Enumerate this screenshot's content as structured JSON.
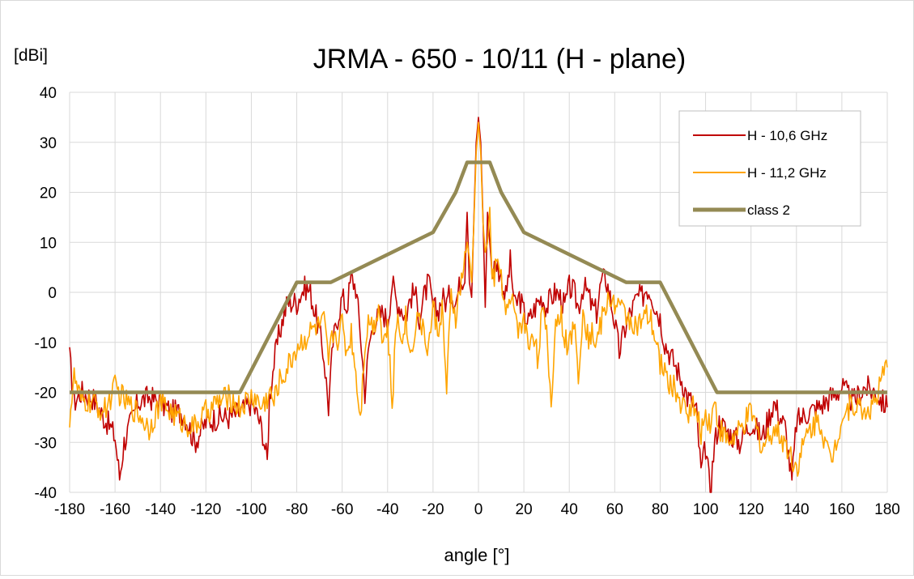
{
  "chart_data": {
    "type": "line",
    "title": "JRMA - 650 - 10/11 (H - plane)",
    "ylabel": "[dBi]",
    "xlabel": "angle [°]",
    "xlim": [
      -180,
      180
    ],
    "ylim": [
      -40,
      40
    ],
    "x_ticks": [
      -180,
      -160,
      -140,
      -120,
      -100,
      -80,
      -60,
      -40,
      -20,
      0,
      20,
      40,
      60,
      80,
      100,
      120,
      140,
      160,
      180
    ],
    "y_ticks": [
      -40,
      -30,
      -20,
      -10,
      0,
      10,
      20,
      30,
      40
    ],
    "grid": true,
    "legend_position": "top-right",
    "series": [
      {
        "name": "H - 10,6 GHz",
        "color": "#c00000",
        "noise": 1,
        "points": [
          [
            -180,
            -13
          ],
          [
            -178,
            -22
          ],
          [
            -175,
            -20
          ],
          [
            -170,
            -21
          ],
          [
            -165,
            -25
          ],
          [
            -162,
            -27
          ],
          [
            -160,
            -29
          ],
          [
            -158,
            -37
          ],
          [
            -156,
            -30
          ],
          [
            -150,
            -22
          ],
          [
            -145,
            -21
          ],
          [
            -140,
            -22
          ],
          [
            -135,
            -24
          ],
          [
            -130,
            -24
          ],
          [
            -128,
            -26
          ],
          [
            -125,
            -30
          ],
          [
            -120,
            -26
          ],
          [
            -115,
            -25
          ],
          [
            -110,
            -25
          ],
          [
            -105,
            -24
          ],
          [
            -100,
            -22
          ],
          [
            -97,
            -25
          ],
          [
            -95,
            -28
          ],
          [
            -93,
            -34
          ],
          [
            -92,
            -21
          ],
          [
            -90,
            -14
          ],
          [
            -88,
            -9
          ],
          [
            -86,
            -5
          ],
          [
            -84,
            -2
          ],
          [
            -82,
            -2
          ],
          [
            -80,
            -2
          ],
          [
            -78,
            0
          ],
          [
            -76,
            1
          ],
          [
            -74,
            0
          ],
          [
            -72,
            -4
          ],
          [
            -70,
            -8
          ],
          [
            -68,
            -13
          ],
          [
            -66,
            -23
          ],
          [
            -64,
            -10
          ],
          [
            -62,
            -5
          ],
          [
            -60,
            -1
          ],
          [
            -58,
            -3
          ],
          [
            -56,
            3
          ],
          [
            -54,
            1
          ],
          [
            -52,
            -8
          ],
          [
            -50,
            -20
          ],
          [
            -48,
            -10
          ],
          [
            -46,
            -6
          ],
          [
            -44,
            -5
          ],
          [
            -42,
            -4
          ],
          [
            -40,
            -6
          ],
          [
            -38,
            2
          ],
          [
            -36,
            -2
          ],
          [
            -34,
            -3
          ],
          [
            -32,
            -5
          ],
          [
            -30,
            -1
          ],
          [
            -28,
            0
          ],
          [
            -26,
            -5
          ],
          [
            -24,
            -1
          ],
          [
            -22,
            2
          ],
          [
            -20,
            -3
          ],
          [
            -18,
            -4
          ],
          [
            -16,
            -1
          ],
          [
            -14,
            -2
          ],
          [
            -12,
            0
          ],
          [
            -10,
            -2
          ],
          [
            -8,
            2
          ],
          [
            -6,
            4
          ],
          [
            -5,
            16
          ],
          [
            -4,
            2
          ],
          [
            -3,
            -1
          ],
          [
            -2,
            15
          ],
          [
            -1,
            30
          ],
          [
            0,
            35
          ],
          [
            1,
            30
          ],
          [
            2,
            15
          ],
          [
            3,
            -3
          ],
          [
            4,
            16
          ],
          [
            5,
            10
          ],
          [
            6,
            4
          ],
          [
            8,
            6
          ],
          [
            10,
            3
          ],
          [
            12,
            -1
          ],
          [
            14,
            6
          ],
          [
            16,
            -3
          ],
          [
            18,
            -1
          ],
          [
            20,
            -4
          ],
          [
            22,
            -6
          ],
          [
            24,
            -4
          ],
          [
            26,
            -2
          ],
          [
            28,
            -1
          ],
          [
            30,
            -3
          ],
          [
            32,
            -1
          ],
          [
            34,
            0
          ],
          [
            36,
            -1
          ],
          [
            38,
            -3
          ],
          [
            40,
            1
          ],
          [
            42,
            0
          ],
          [
            44,
            -3
          ],
          [
            46,
            1
          ],
          [
            48,
            0
          ],
          [
            50,
            -3
          ],
          [
            52,
            -4
          ],
          [
            54,
            2
          ],
          [
            56,
            3
          ],
          [
            58,
            -1
          ],
          [
            60,
            -6
          ],
          [
            62,
            -12
          ],
          [
            64,
            -8
          ],
          [
            66,
            -5
          ],
          [
            68,
            -3
          ],
          [
            70,
            -1
          ],
          [
            72,
            -1
          ],
          [
            74,
            1
          ],
          [
            76,
            0
          ],
          [
            78,
            -3
          ],
          [
            80,
            -5
          ],
          [
            82,
            -10
          ],
          [
            84,
            -12
          ],
          [
            86,
            -14
          ],
          [
            88,
            -16
          ],
          [
            90,
            -18
          ],
          [
            92,
            -21
          ],
          [
            94,
            -22
          ],
          [
            96,
            -24
          ],
          [
            98,
            -36
          ],
          [
            100,
            -31
          ],
          [
            102,
            -40
          ],
          [
            104,
            -30
          ],
          [
            106,
            -26
          ],
          [
            110,
            -28
          ],
          [
            115,
            -30
          ],
          [
            120,
            -26
          ],
          [
            125,
            -29
          ],
          [
            130,
            -22
          ],
          [
            135,
            -27
          ],
          [
            138,
            -38
          ],
          [
            140,
            -26
          ],
          [
            145,
            -24
          ],
          [
            150,
            -23
          ],
          [
            155,
            -21
          ],
          [
            160,
            -19
          ],
          [
            165,
            -22
          ],
          [
            170,
            -19
          ],
          [
            175,
            -20
          ],
          [
            178,
            -22
          ],
          [
            180,
            -23
          ]
        ]
      },
      {
        "name": "H - 11,2 GHz",
        "color": "#ffa500",
        "noise": 1,
        "points": [
          [
            -180,
            -25
          ],
          [
            -178,
            -17
          ],
          [
            -175,
            -22
          ],
          [
            -170,
            -22
          ],
          [
            -165,
            -24
          ],
          [
            -160,
            -19
          ],
          [
            -155,
            -22
          ],
          [
            -150,
            -24
          ],
          [
            -145,
            -27
          ],
          [
            -140,
            -22
          ],
          [
            -135,
            -24
          ],
          [
            -130,
            -26
          ],
          [
            -125,
            -27
          ],
          [
            -120,
            -24
          ],
          [
            -115,
            -22
          ],
          [
            -110,
            -21
          ],
          [
            -105,
            -23
          ],
          [
            -100,
            -21
          ],
          [
            -98,
            -21
          ],
          [
            -96,
            -23
          ],
          [
            -94,
            -22
          ],
          [
            -92,
            -20
          ],
          [
            -90,
            -22
          ],
          [
            -88,
            -18
          ],
          [
            -86,
            -17
          ],
          [
            -84,
            -15
          ],
          [
            -82,
            -13
          ],
          [
            -80,
            -11
          ],
          [
            -78,
            -10
          ],
          [
            -76,
            -9
          ],
          [
            -74,
            -8
          ],
          [
            -72,
            -7
          ],
          [
            -70,
            -7
          ],
          [
            -68,
            -6
          ],
          [
            -66,
            -14
          ],
          [
            -64,
            -8
          ],
          [
            -62,
            -9
          ],
          [
            -60,
            -6
          ],
          [
            -58,
            -12
          ],
          [
            -56,
            -8
          ],
          [
            -54,
            -16
          ],
          [
            -52,
            -25
          ],
          [
            -50,
            -10
          ],
          [
            -48,
            -5
          ],
          [
            -46,
            -7
          ],
          [
            -44,
            -2
          ],
          [
            -42,
            -10
          ],
          [
            -40,
            -7
          ],
          [
            -38,
            -23
          ],
          [
            -36,
            -5
          ],
          [
            -34,
            -9
          ],
          [
            -32,
            -5
          ],
          [
            -30,
            -13
          ],
          [
            -28,
            -7
          ],
          [
            -26,
            -4
          ],
          [
            -24,
            -9
          ],
          [
            -22,
            -11
          ],
          [
            -20,
            -3
          ],
          [
            -18,
            -8
          ],
          [
            -16,
            -3
          ],
          [
            -14,
            -20
          ],
          [
            -12,
            -1
          ],
          [
            -10,
            -5
          ],
          [
            -8,
            1
          ],
          [
            -6,
            6
          ],
          [
            -5,
            10
          ],
          [
            -4,
            7
          ],
          [
            -3,
            2
          ],
          [
            -2,
            14
          ],
          [
            -1,
            28
          ],
          [
            0,
            34
          ],
          [
            1,
            28
          ],
          [
            2,
            14
          ],
          [
            3,
            8
          ],
          [
            4,
            10
          ],
          [
            5,
            17
          ],
          [
            6,
            2
          ],
          [
            8,
            5
          ],
          [
            10,
            4
          ],
          [
            12,
            -5
          ],
          [
            14,
            -2
          ],
          [
            16,
            -3
          ],
          [
            18,
            -8
          ],
          [
            20,
            -5
          ],
          [
            22,
            -11
          ],
          [
            24,
            -7
          ],
          [
            26,
            -13
          ],
          [
            28,
            -4
          ],
          [
            30,
            -9
          ],
          [
            32,
            -22
          ],
          [
            34,
            -6
          ],
          [
            36,
            -4
          ],
          [
            38,
            -9
          ],
          [
            40,
            -11
          ],
          [
            42,
            -6
          ],
          [
            44,
            -16
          ],
          [
            46,
            -3
          ],
          [
            48,
            -9
          ],
          [
            50,
            -8
          ],
          [
            52,
            -10
          ],
          [
            54,
            -6
          ],
          [
            56,
            -3
          ],
          [
            58,
            -1
          ],
          [
            60,
            -2
          ],
          [
            62,
            -3
          ],
          [
            64,
            -4
          ],
          [
            66,
            -5
          ],
          [
            68,
            -6
          ],
          [
            70,
            -7
          ],
          [
            72,
            -6
          ],
          [
            74,
            -5
          ],
          [
            76,
            -6
          ],
          [
            78,
            -10
          ],
          [
            80,
            -14
          ],
          [
            82,
            -16
          ],
          [
            84,
            -18
          ],
          [
            86,
            -19
          ],
          [
            88,
            -21
          ],
          [
            90,
            -23
          ],
          [
            92,
            -24
          ],
          [
            94,
            -22
          ],
          [
            96,
            -25
          ],
          [
            98,
            -28
          ],
          [
            100,
            -24
          ],
          [
            102,
            -26
          ],
          [
            104,
            -22
          ],
          [
            106,
            -27
          ],
          [
            110,
            -30
          ],
          [
            115,
            -28
          ],
          [
            120,
            -24
          ],
          [
            125,
            -31
          ],
          [
            130,
            -27
          ],
          [
            135,
            -30
          ],
          [
            140,
            -35
          ],
          [
            145,
            -28
          ],
          [
            150,
            -25
          ],
          [
            155,
            -34
          ],
          [
            160,
            -25
          ],
          [
            165,
            -22
          ],
          [
            170,
            -24
          ],
          [
            175,
            -22
          ],
          [
            178,
            -17
          ],
          [
            180,
            -15
          ]
        ]
      },
      {
        "name": "class 2",
        "color": "#948a54",
        "noise": 0,
        "points": [
          [
            -180,
            -20
          ],
          [
            -105,
            -20
          ],
          [
            -80,
            2
          ],
          [
            -65,
            2
          ],
          [
            -20,
            12
          ],
          [
            -10,
            20
          ],
          [
            -5,
            26
          ],
          [
            5,
            26
          ],
          [
            10,
            20
          ],
          [
            20,
            12
          ],
          [
            65,
            2
          ],
          [
            80,
            2
          ],
          [
            105,
            -20
          ],
          [
            180,
            -20
          ]
        ]
      }
    ]
  }
}
